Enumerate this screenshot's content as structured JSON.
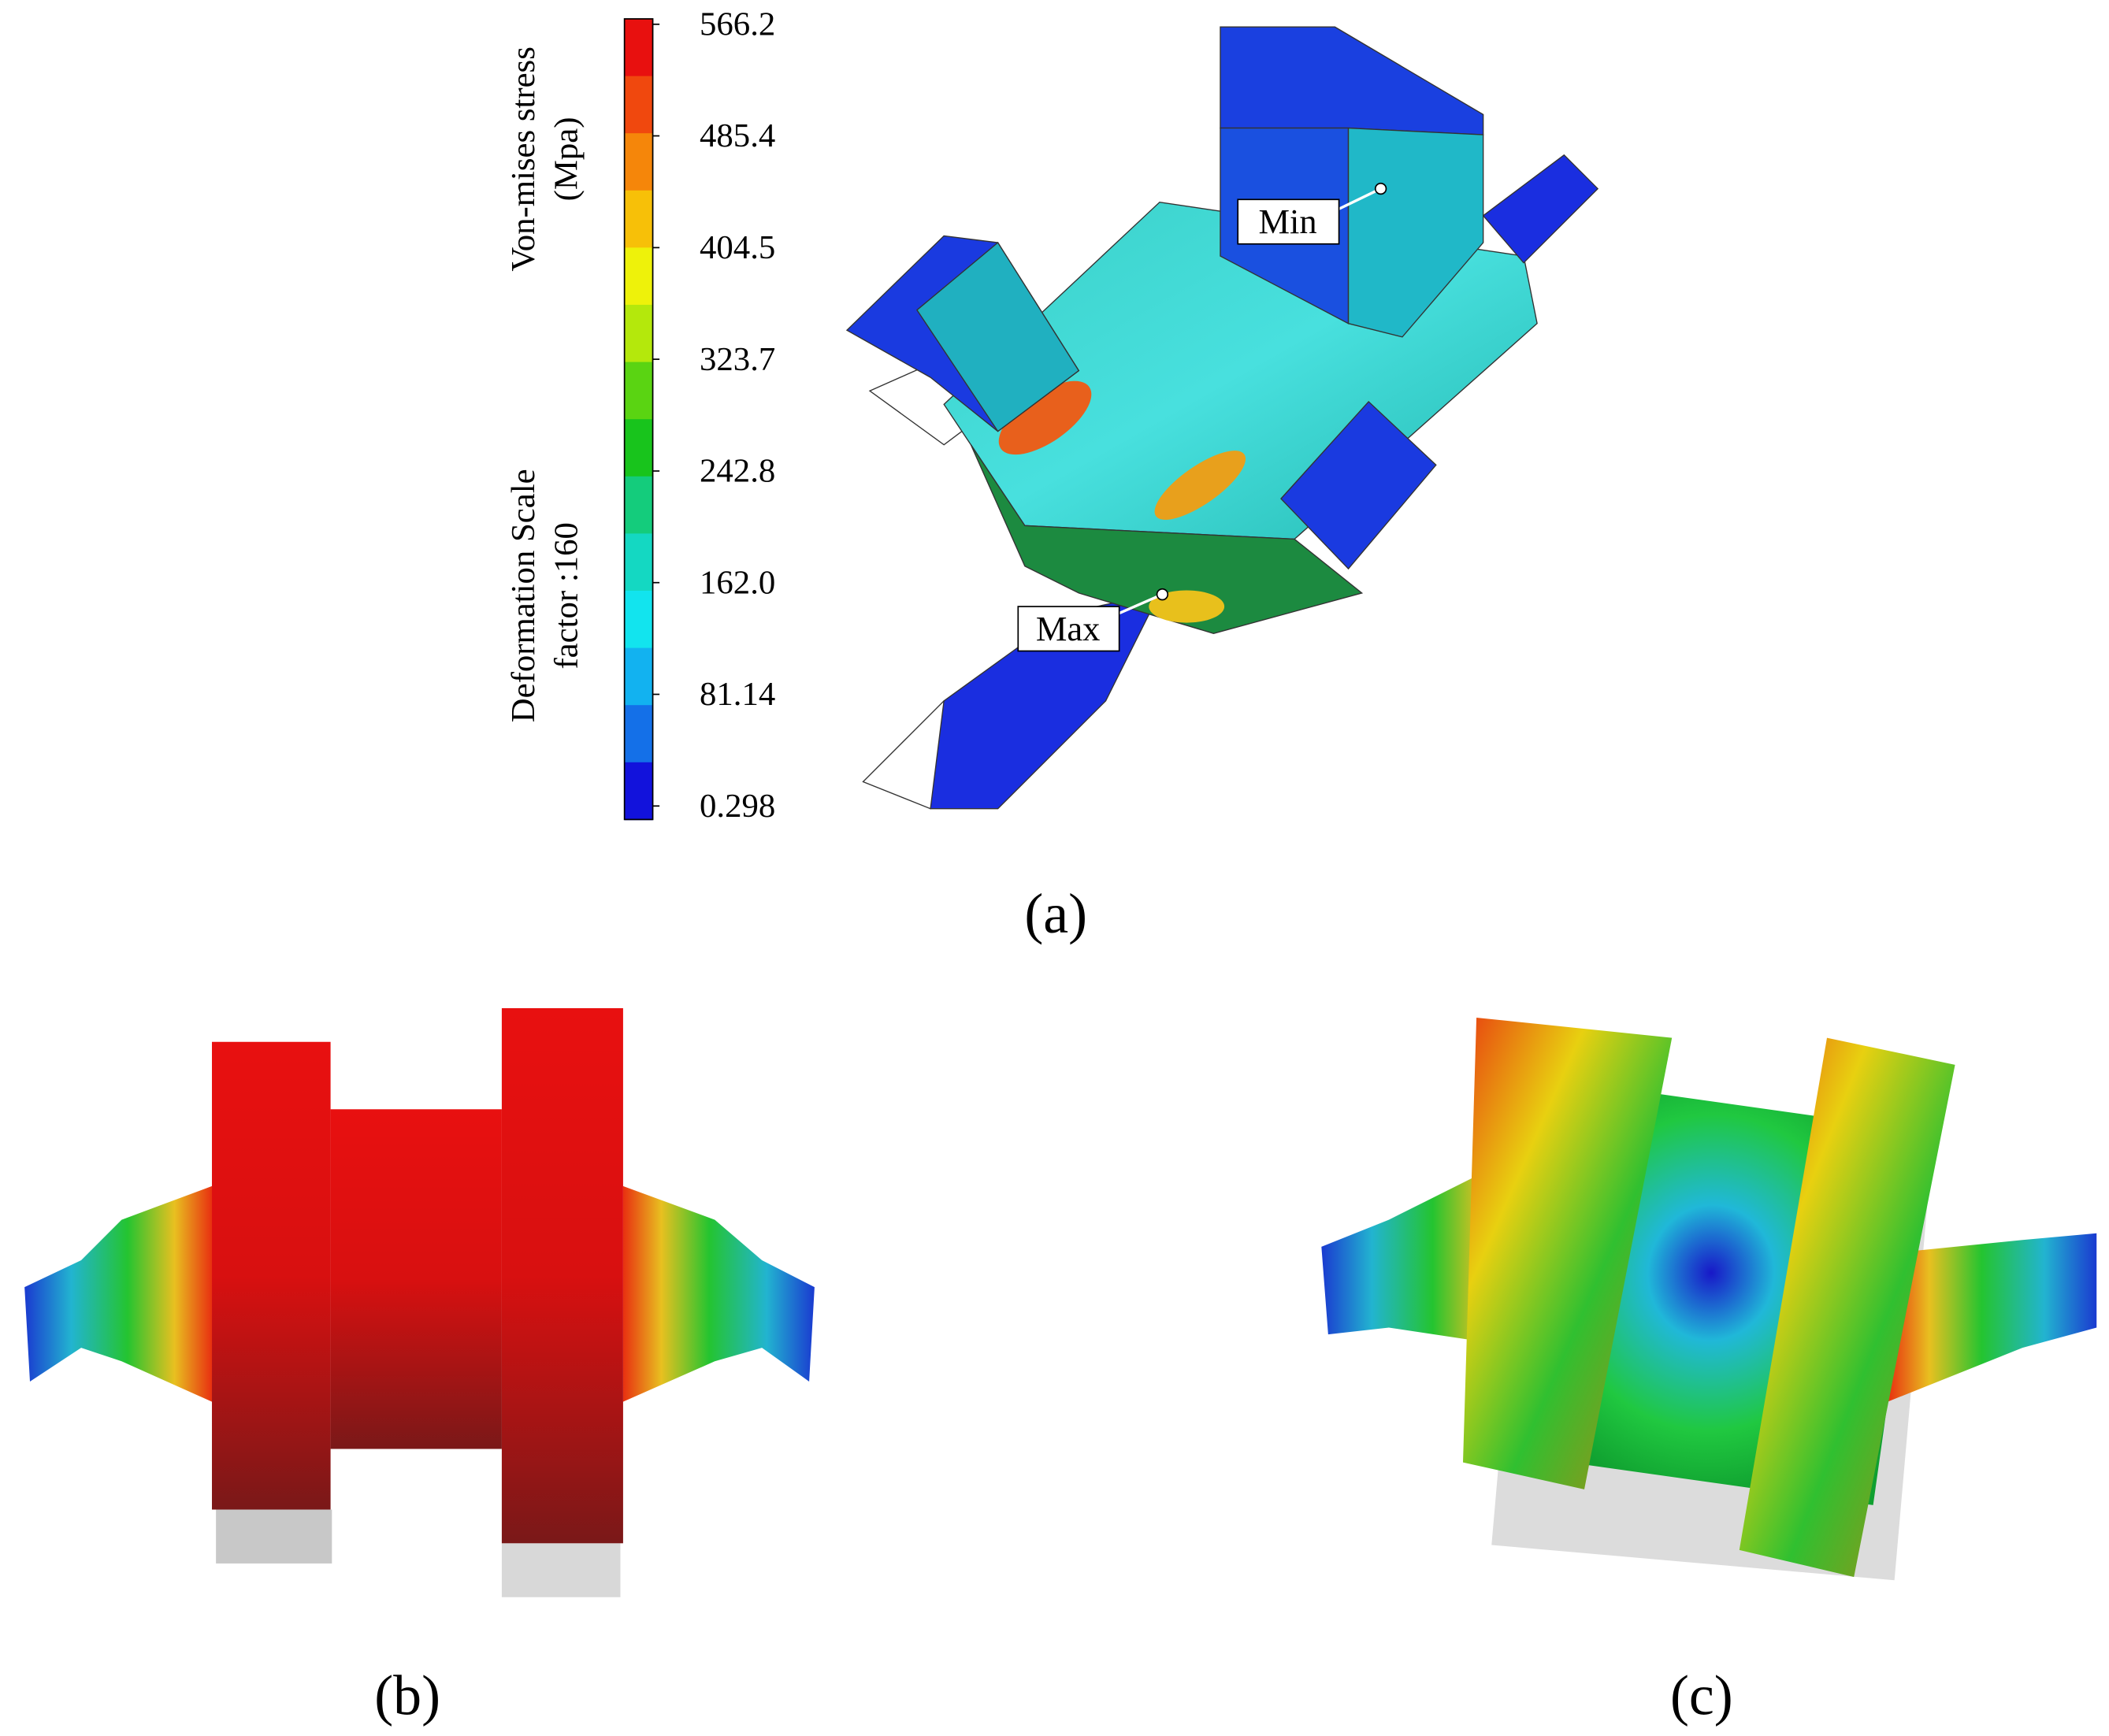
{
  "colorbar": {
    "title_lines": [
      "Von-mises stress",
      "(Mpa)"
    ],
    "note_lines": [
      "Deformation Scale",
      "factor :160"
    ],
    "lim": [
      0.298,
      566.2
    ],
    "ticks": [
      566.2,
      485.4,
      404.5,
      323.7,
      242.8,
      {
        "value": 162.0,
        "label": "162.0"
      },
      81.14,
      0.298
    ],
    "colors": [
      "#e8100f",
      "#f0480e",
      "#f5860a",
      "#f7c008",
      "#eef20a",
      "#b4e80c",
      "#5ad412",
      "#18c41c",
      "#14cc7c",
      "#14d8c2",
      "#12e4ee",
      "#12b2f0",
      "#1470e8",
      "#1212dc"
    ]
  },
  "annotations": {
    "min": "Min",
    "max": "Max"
  },
  "panels": {
    "a": "(a)",
    "b": "(b)",
    "c": "(c)"
  }
}
